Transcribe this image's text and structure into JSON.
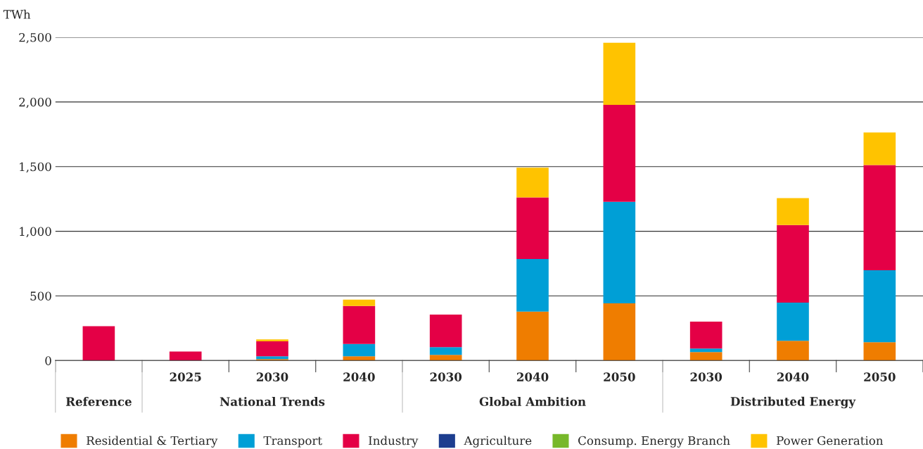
{
  "chart_data": {
    "type": "bar",
    "stacked": true,
    "ylabel": "TWh",
    "categories": [
      null,
      "2025",
      "2030",
      "2040",
      "2030",
      "2040",
      "2050",
      "2030",
      "2040",
      "2050"
    ],
    "series": [
      {
        "name": "Residential & Tertiary",
        "color": "#ef7d00",
        "values": [
          0,
          0,
          11,
          33,
          44,
          378,
          443,
          66,
          153,
          142
        ]
      },
      {
        "name": "Transport",
        "color": "#009fd6",
        "values": [
          0,
          0,
          22,
          95,
          60,
          408,
          785,
          27,
          295,
          557
        ]
      },
      {
        "name": "Industry",
        "color": "#e40046",
        "values": [
          265,
          70,
          115,
          294,
          252,
          475,
          749,
          208,
          600,
          813
        ]
      },
      {
        "name": "Agriculture",
        "color": "#1d3e8f",
        "values": [
          0,
          0,
          0,
          0,
          0,
          0,
          0,
          0,
          0,
          0
        ]
      },
      {
        "name": "Consump. Energy Branch",
        "color": "#77b82a",
        "values": [
          0,
          0,
          0,
          0,
          0,
          0,
          0,
          0,
          0,
          0
        ]
      },
      {
        "name": "Power Generation",
        "color": "#ffc300",
        "values": [
          0,
          0,
          16,
          49,
          0,
          230,
          480,
          0,
          208,
          252
        ]
      }
    ],
    "ylim": [
      0,
      2500
    ],
    "yticks": [
      {
        "value": 0,
        "label": "0"
      },
      {
        "value": 500,
        "label": "500"
      },
      {
        "value": 1000,
        "label": "1,000"
      },
      {
        "value": 1500,
        "label": "1,500"
      },
      {
        "value": 2000,
        "label": "2,000"
      },
      {
        "value": 2500,
        "label": "2,500"
      }
    ],
    "grid": "y",
    "legend": "bottom",
    "annotations": [
      "Reference",
      "National Trends",
      "Global Ambition",
      "Distributed Energy"
    ]
  }
}
